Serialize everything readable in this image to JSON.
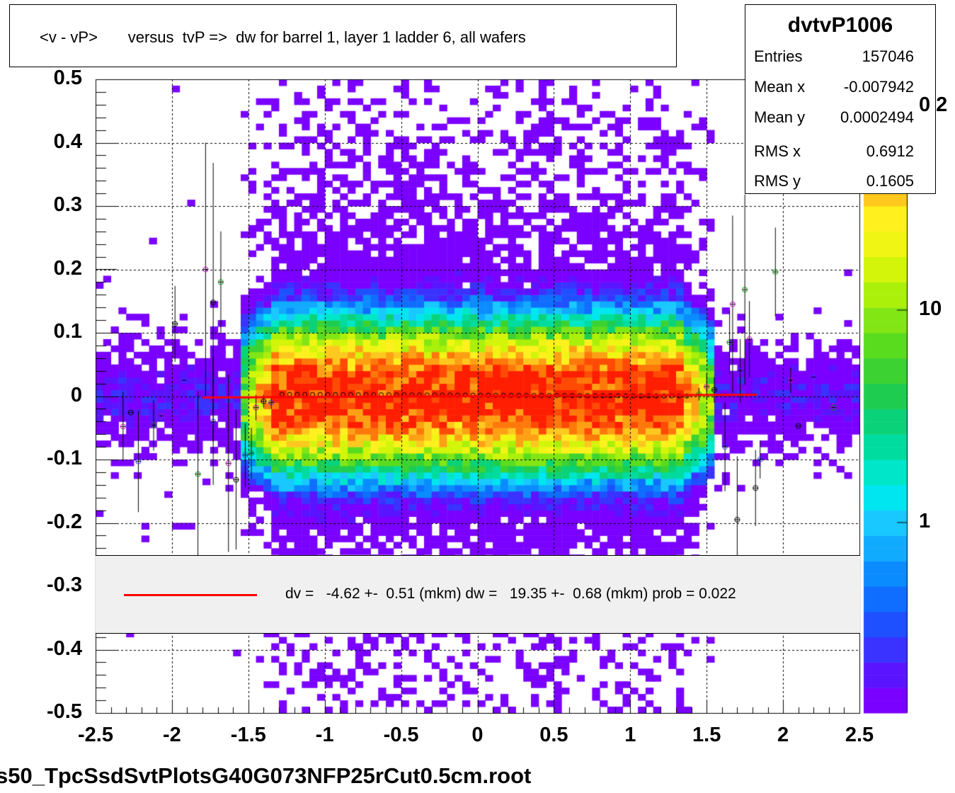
{
  "title": "<v - vP>       versus  tvP =>  dw for barrel 1, layer 1 ladder 6, all wafers",
  "stats": {
    "name": "dvtvP1006",
    "rows": [
      {
        "key": "Entries",
        "value": "157046"
      },
      {
        "key": "Mean x",
        "value": "-0.007942"
      },
      {
        "key": "Mean y",
        "value": "0.0002494"
      },
      {
        "key": "RMS x",
        "value": "0.6912"
      },
      {
        "key": "RMS y",
        "value": "0.1605"
      }
    ]
  },
  "legend": {
    "text": "dv =   -4.62 +-  0.51 (mkm) dw =   19.35 +-  0.68 (mkm) prob = 0.022",
    "line_color": "#ff0000"
  },
  "footer": "s50_TpcSsdSvtPlotsG40G073NFP25rCut0.5cm.root",
  "colors": {
    "fit": "#ff0000",
    "profile_black": "#000000",
    "profile_magenta": "#cc00cc",
    "profile_blue": "#3333ff",
    "profile_green": "#009900"
  },
  "chart_data": {
    "type": "heatmap",
    "title": "<v - vP>       versus  tvP =>  dw for barrel 1, layer 1 ladder 6, all wafers",
    "xlim": [
      -2.5,
      2.5
    ],
    "ylim": [
      -0.5,
      0.5
    ],
    "x_ticks": [
      "-2.5",
      "-2",
      "-1.5",
      "-1",
      "-0.5",
      "0",
      "0.5",
      "1",
      "1.5",
      "2",
      "2.5"
    ],
    "y_ticks": [
      "-0.5",
      "-0.4",
      "-0.3",
      "-0.2",
      "-0.1",
      "0",
      "0.1",
      "0.2",
      "0.3",
      "0.4",
      "0.5"
    ],
    "z_ticks": [
      "1",
      "10",
      "0 2"
    ],
    "z_scale": "log",
    "grid": true,
    "density_model": {
      "x_range": [
        -1.45,
        1.45
      ],
      "y_center": 0.0,
      "y_sigma": 0.05,
      "peak_counts": 120
    },
    "fit_line": {
      "x": [
        -1.8,
        1.83
      ],
      "y": [
        0.0,
        0.0
      ]
    },
    "profile_points": [
      {
        "x": -2.32,
        "y": -0.048,
        "err": 0.055
      },
      {
        "x": -2.27,
        "y": -0.026,
        "err": 0.0
      },
      {
        "x": -2.22,
        "y": -0.103,
        "err": 0.08
      },
      {
        "x": -2.12,
        "y": -0.046,
        "err": 0.04
      },
      {
        "x": -2.07,
        "y": -0.031,
        "err": 0.0
      },
      {
        "x": -1.98,
        "y": 0.114,
        "err": 0.06
      },
      {
        "x": -1.92,
        "y": 0.025,
        "err": 0.0
      },
      {
        "x": -1.83,
        "y": -0.123,
        "err": 0.13
      },
      {
        "x": -1.78,
        "y": 0.2,
        "err": 0.2
      },
      {
        "x": -1.73,
        "y": 0.148,
        "err": 0.22
      },
      {
        "x": -1.73,
        "y": -0.04,
        "err": 0.1
      },
      {
        "x": -1.68,
        "y": 0.18,
        "err": 0.08
      },
      {
        "x": -1.63,
        "y": -0.106,
        "err": 0.14
      },
      {
        "x": -1.58,
        "y": -0.132,
        "err": 0.11
      },
      {
        "x": -1.52,
        "y": -0.093,
        "err": 0.05
      },
      {
        "x": -1.48,
        "y": -0.09,
        "err": 0.04
      },
      {
        "x": -1.45,
        "y": -0.018,
        "err": 0.02
      },
      {
        "x": -1.4,
        "y": -0.008,
        "err": 0.01
      },
      {
        "x": -1.35,
        "y": -0.01,
        "err": 0.01
      },
      {
        "x": 1.45,
        "y": 0.003,
        "err": 0.01
      },
      {
        "x": 1.5,
        "y": 0.015,
        "err": 0.02
      },
      {
        "x": 1.55,
        "y": 0.01,
        "err": 0.02
      },
      {
        "x": 1.62,
        "y": -0.08,
        "err": 0.07
      },
      {
        "x": 1.65,
        "y": 0.085,
        "err": 0.05
      },
      {
        "x": 1.67,
        "y": 0.145,
        "err": 0.14
      },
      {
        "x": 1.7,
        "y": -0.195,
        "err": 0.1
      },
      {
        "x": 1.72,
        "y": 0.04,
        "err": 0.05
      },
      {
        "x": 1.75,
        "y": 0.168,
        "err": 0.15
      },
      {
        "x": 1.78,
        "y": 0.09,
        "err": 0.06
      },
      {
        "x": 1.82,
        "y": -0.145,
        "err": 0.06
      },
      {
        "x": 1.85,
        "y": -0.1,
        "err": 0.03
      },
      {
        "x": 1.95,
        "y": 0.196,
        "err": 0.07
      },
      {
        "x": 2.05,
        "y": 0.025,
        "err": 0.02
      },
      {
        "x": 2.1,
        "y": -0.047,
        "err": 0.0
      },
      {
        "x": 2.2,
        "y": 0.03,
        "err": 0.0
      },
      {
        "x": 2.33,
        "y": -0.018,
        "err": 0.0
      }
    ]
  }
}
